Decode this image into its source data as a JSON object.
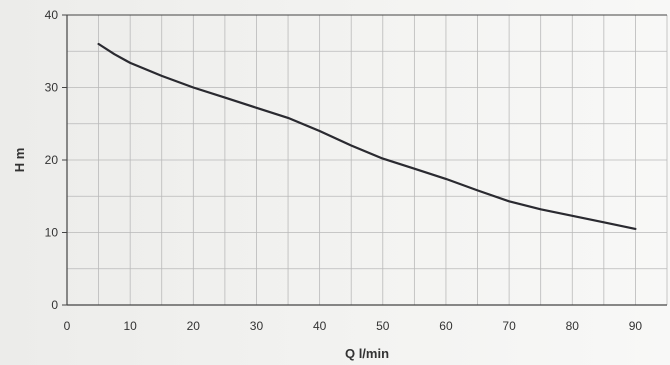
{
  "chart_data": {
    "type": "line",
    "title": "",
    "xlabel": "Q l/min",
    "ylabel": "H m",
    "xlim": [
      0,
      95
    ],
    "ylim": [
      0,
      40
    ],
    "x_ticks": [
      0,
      10,
      20,
      30,
      40,
      50,
      60,
      70,
      80,
      90
    ],
    "y_ticks": [
      0,
      10,
      20,
      30,
      40
    ],
    "grid": true,
    "legend": "none",
    "colors": {
      "line": "#2a2a30",
      "grid": "#b9b9b9",
      "axis": "#444444"
    },
    "series": [
      {
        "x": [
          5,
          7.5,
          10,
          15,
          20,
          25,
          30,
          35,
          40,
          45,
          50,
          55,
          60,
          65,
          70,
          75,
          80,
          85,
          90
        ],
        "values": [
          36,
          34.6,
          33.4,
          31.6,
          30,
          28.6,
          27.2,
          25.8,
          24,
          22,
          20.2,
          18.8,
          17.4,
          15.8,
          14.3,
          13.2,
          12.3,
          11.4,
          10.5
        ]
      }
    ]
  }
}
